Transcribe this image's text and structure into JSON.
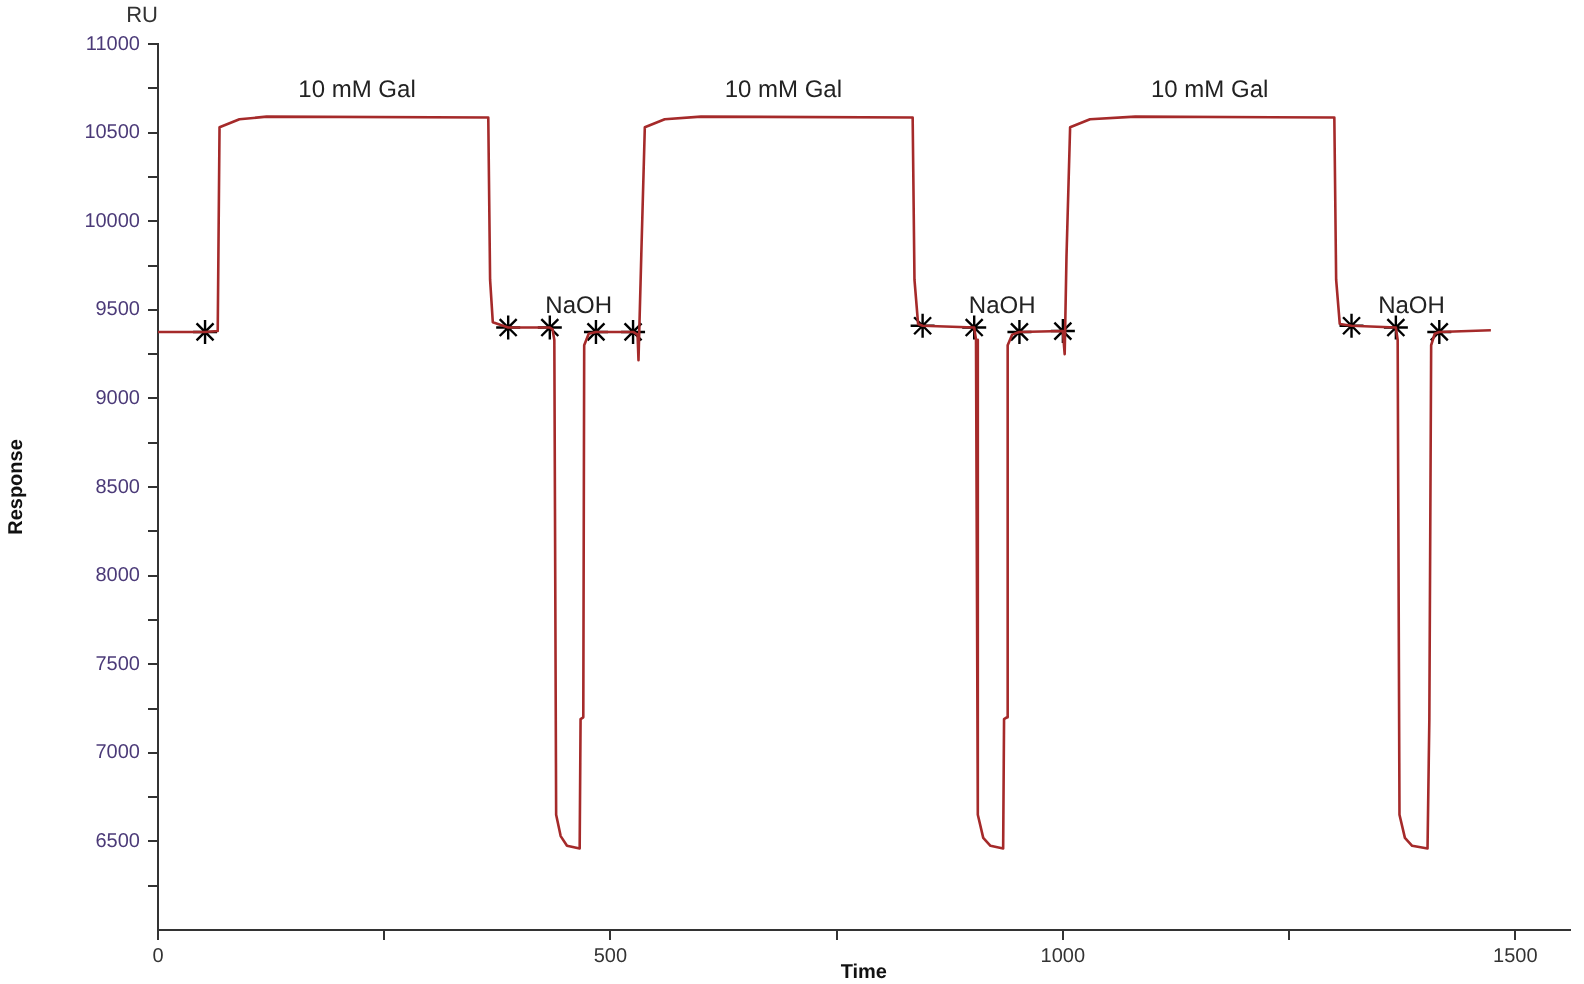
{
  "chart_data": {
    "type": "line",
    "xlabel": "Time",
    "ylabel": "Response",
    "xlim": [
      0,
      1560
    ],
    "xticks": [
      0,
      {
        "value": 250,
        "label": null
      },
      500,
      {
        "value": 750,
        "label": null
      },
      1000,
      {
        "value": 1250,
        "label": null
      },
      1500
    ],
    "ylim": [
      6000,
      11000
    ],
    "yticks": [
      {
        "value": 6250,
        "label": null
      },
      6500,
      {
        "value": 6750,
        "label": null
      },
      7000,
      {
        "value": 7250,
        "label": null
      },
      7500,
      {
        "value": 7750,
        "label": null
      },
      8000,
      {
        "value": 8250,
        "label": null
      },
      8500,
      {
        "value": 8750,
        "label": null
      },
      9000,
      {
        "value": 9250,
        "label": null
      },
      9500,
      {
        "value": 9750,
        "label": null
      },
      10000,
      {
        "value": 10250,
        "label": null
      },
      10500,
      {
        "value": 10750,
        "label": null
      },
      11000
    ],
    "grid": false,
    "legend": false,
    "series": [
      {
        "color": "#a52a2a",
        "marker": "none",
        "x": [
          0,
          52,
          66,
          68,
          90,
          120,
          365,
          367,
          370,
          387,
          433,
          436,
          438,
          440,
          445,
          452,
          466,
          467,
          470,
          471,
          476,
          484,
          525,
          530,
          531,
          534,
          538,
          560,
          600,
          834,
          836,
          840,
          845,
          902,
          904,
          906,
          912,
          920,
          934,
          935,
          938,
          939,
          944,
          952,
          1000,
          1002,
          1004,
          1008,
          1030,
          1080,
          1300,
          1302,
          1306,
          1319,
          1368,
          1370,
          1372,
          1378,
          1386,
          1403,
          1405,
          1407,
          1411,
          1416,
          1473
        ],
        "values": [
          9375,
          9375,
          9380,
          10530,
          10575,
          10590,
          10585,
          9670,
          9430,
          9400,
          9400,
          9390,
          9330,
          6650,
          6530,
          6475,
          6460,
          7190,
          7200,
          9300,
          9365,
          9375,
          9375,
          9360,
          9215,
          9790,
          10530,
          10575,
          10590,
          10585,
          9670,
          9420,
          9410,
          9400,
          9330,
          6650,
          6520,
          6475,
          6460,
          7190,
          7200,
          9300,
          9360,
          9375,
          9380,
          9250,
          9800,
          10530,
          10575,
          10590,
          10585,
          9670,
          9420,
          9410,
          9400,
          9330,
          6650,
          6520,
          6475,
          6460,
          7190,
          9300,
          9365,
          9375,
          9385
        ]
      },
      {
        "type": "scatter",
        "color": "#000000",
        "marker": "cross",
        "x": [
          52,
          387,
          433,
          484,
          525,
          845,
          902,
          952,
          1000,
          1319,
          1368,
          1416
        ],
        "values": [
          9375,
          9400,
          9400,
          9375,
          9375,
          9410,
          9400,
          9375,
          9380,
          9410,
          9400,
          9375
        ]
      }
    ],
    "annotations": [
      "RU",
      "10 mM Gal",
      "NaOH",
      "10 mM Gal",
      "NaOH",
      "10 mM Gal",
      "NaOH"
    ]
  }
}
